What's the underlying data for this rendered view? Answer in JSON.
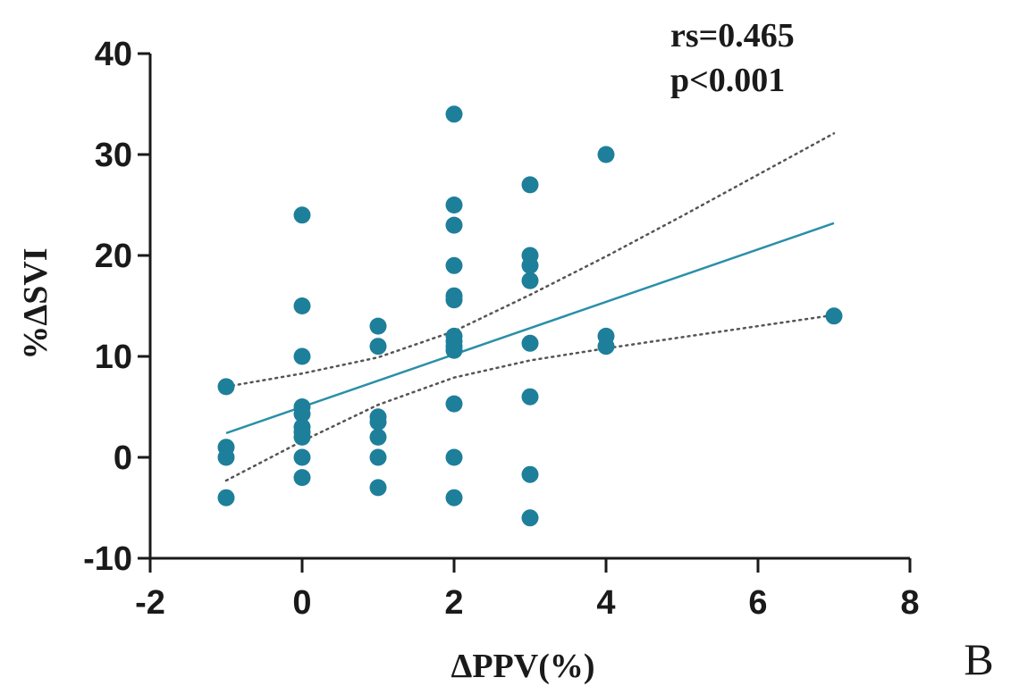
{
  "chart_data": {
    "type": "scatter",
    "xlabel": "ΔPPV(%)",
    "ylabel": "%ΔSVI",
    "xlim": [
      -2,
      8
    ],
    "ylim": [
      -10,
      40
    ],
    "xticks": [
      -2,
      0,
      2,
      4,
      6,
      8
    ],
    "yticks": [
      -10,
      0,
      10,
      20,
      30,
      40
    ],
    "xtick_labels": [
      "-2",
      "0",
      "2",
      "4",
      "6",
      "8"
    ],
    "ytick_labels": [
      "-10",
      "0",
      "10",
      "20",
      "30",
      "40"
    ],
    "grid": false,
    "points": [
      {
        "x": -1,
        "y": 7
      },
      {
        "x": -1,
        "y": 1
      },
      {
        "x": -1,
        "y": 0
      },
      {
        "x": -1,
        "y": -4
      },
      {
        "x": 0,
        "y": 24
      },
      {
        "x": 0,
        "y": 15
      },
      {
        "x": 0,
        "y": 10
      },
      {
        "x": 0,
        "y": 5
      },
      {
        "x": 0,
        "y": 4.3
      },
      {
        "x": 0,
        "y": 3
      },
      {
        "x": 0,
        "y": 2.5
      },
      {
        "x": 0,
        "y": 2
      },
      {
        "x": 0,
        "y": 0
      },
      {
        "x": 0,
        "y": -2
      },
      {
        "x": 1,
        "y": 13
      },
      {
        "x": 1,
        "y": 11
      },
      {
        "x": 1,
        "y": 4
      },
      {
        "x": 1,
        "y": 3.5
      },
      {
        "x": 1,
        "y": 2
      },
      {
        "x": 1,
        "y": 0
      },
      {
        "x": 1,
        "y": -3
      },
      {
        "x": 2,
        "y": 34
      },
      {
        "x": 2,
        "y": 25
      },
      {
        "x": 2,
        "y": 23
      },
      {
        "x": 2,
        "y": 19
      },
      {
        "x": 2,
        "y": 16
      },
      {
        "x": 2,
        "y": 15.6
      },
      {
        "x": 2,
        "y": 12
      },
      {
        "x": 2,
        "y": 11.5
      },
      {
        "x": 2,
        "y": 11
      },
      {
        "x": 2,
        "y": 10.6
      },
      {
        "x": 2,
        "y": 5.3
      },
      {
        "x": 2,
        "y": 0
      },
      {
        "x": 2,
        "y": -4
      },
      {
        "x": 3,
        "y": 27
      },
      {
        "x": 3,
        "y": 20
      },
      {
        "x": 3,
        "y": 19
      },
      {
        "x": 3,
        "y": 17.5
      },
      {
        "x": 3,
        "y": 11.3
      },
      {
        "x": 3,
        "y": 6
      },
      {
        "x": 3,
        "y": -1.7
      },
      {
        "x": 3,
        "y": -6
      },
      {
        "x": 4,
        "y": 30
      },
      {
        "x": 4,
        "y": 12
      },
      {
        "x": 4,
        "y": 11
      },
      {
        "x": 7,
        "y": 14
      }
    ],
    "regression_line": {
      "x": [
        -1,
        7
      ],
      "y": [
        2.4,
        23.2
      ]
    },
    "ci_upper": {
      "x": [
        -1,
        0,
        1,
        2,
        3,
        4,
        5,
        6,
        7
      ],
      "y": [
        7.0,
        8.3,
        9.9,
        12.5,
        16.1,
        19.9,
        23.9,
        28.0,
        32.1
      ]
    },
    "ci_lower": {
      "x": [
        -1,
        0,
        1,
        2,
        3,
        4,
        5,
        6,
        7
      ],
      "y": [
        -2.3,
        1.6,
        5.2,
        7.9,
        9.6,
        10.8,
        11.9,
        13.0,
        14.1
      ]
    },
    "annotations": [
      "rs=0.465",
      "p<0.001"
    ],
    "panel_label": "B",
    "colors": {
      "points": "#1e7f9a",
      "line": "#2a8fa8",
      "ci": "#555555",
      "axis": "#1a1a1a"
    }
  }
}
